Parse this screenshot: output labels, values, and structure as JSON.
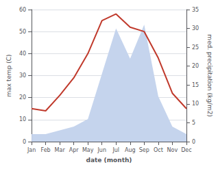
{
  "chart_data": {
    "type": "line",
    "xlabel": "date (month)",
    "ylabel": "max temp (C)",
    "y2label": "med. precipitation (kg/m2)",
    "categories": [
      "Jan",
      "Feb",
      "Mar",
      "Apr",
      "May",
      "Jun",
      "Jul",
      "Aug",
      "Sep",
      "Oct",
      "Nov",
      "Dec"
    ],
    "series": [
      {
        "type": "area",
        "color": "#c5d4ed",
        "axis": "y2",
        "values": [
          2,
          2,
          3,
          4,
          6,
          18,
          30,
          22,
          31,
          12,
          4,
          2
        ]
      },
      {
        "type": "line",
        "color": "#c0392b",
        "values": [
          15,
          14,
          21,
          29,
          40,
          55,
          58,
          52,
          50,
          38,
          22,
          15
        ]
      }
    ],
    "ylim": [
      0,
      60
    ],
    "yticks": [
      0,
      10,
      20,
      30,
      40,
      50,
      60
    ],
    "y2lim": [
      0,
      35
    ],
    "y2ticks": [
      0,
      5,
      10,
      15,
      20,
      25,
      30,
      35
    ],
    "grid": true
  }
}
